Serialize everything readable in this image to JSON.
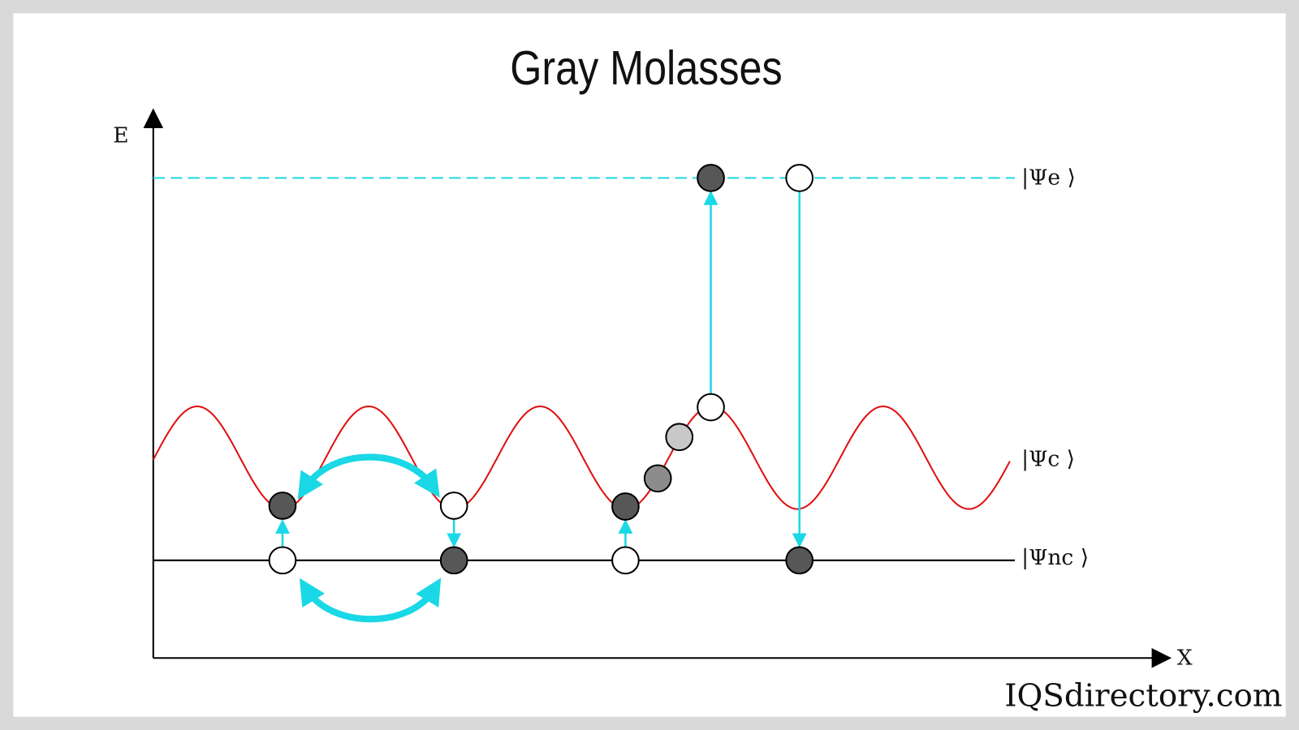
{
  "title": "Gray Molasses",
  "axes": {
    "y_label": "E",
    "x_label": "X"
  },
  "states": {
    "excited": "|Ψe ⟩",
    "coupled": "|Ψc ⟩",
    "noncoupled": "|Ψnc ⟩"
  },
  "watermark": "IQSdirectory.com"
}
